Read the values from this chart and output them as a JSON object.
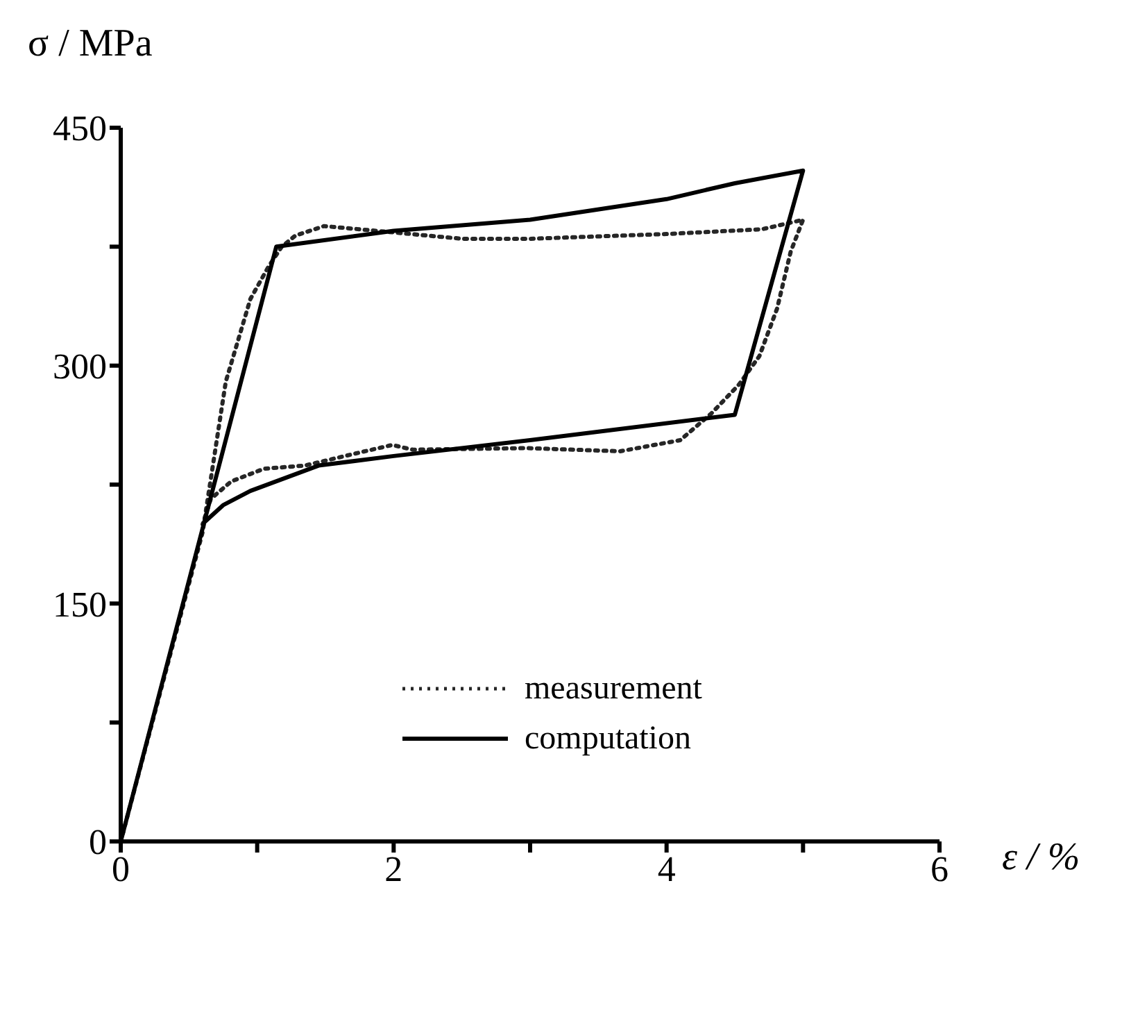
{
  "chart_data": {
    "type": "line",
    "xlabel": "ε / %",
    "ylabel": "σ / MPa",
    "xlim": [
      0,
      6
    ],
    "ylim": [
      0,
      450
    ],
    "xticks": [
      0,
      {
        "value": 1,
        "label": null
      },
      2,
      {
        "value": 3,
        "label": null
      },
      4,
      {
        "value": 5,
        "label": null
      },
      6
    ],
    "yticks": [
      0,
      {
        "value": 75,
        "label": null
      },
      150,
      {
        "value": 225,
        "label": null
      },
      300,
      {
        "value": 375,
        "label": null
      },
      450
    ],
    "legend": "bottom",
    "marker": "none",
    "series": [
      {
        "name": "measurement",
        "color": "#262626",
        "line_style": "dotted",
        "x": [
          0,
          0.6,
          0.77,
          0.95,
          1.08,
          1.18,
          1.28,
          1.49,
          2,
          2.5,
          3,
          4,
          4.7,
          5,
          4.91,
          4.81,
          4.68,
          4.53,
          4.33,
          4.1,
          3.66,
          3.32,
          2.98,
          2.14,
          1.99,
          1.69,
          1.35,
          1.05,
          0.81,
          0.66,
          0.6
        ],
        "values": [
          0,
          195,
          290,
          342,
          362,
          375,
          382,
          388,
          384,
          380,
          380,
          383,
          386,
          392,
          372,
          336,
          306,
          288,
          270,
          253,
          246,
          247,
          248,
          247,
          250,
          244,
          237,
          235,
          227,
          216,
          200
        ]
      },
      {
        "name": "computation",
        "color": "#000000",
        "line_style": "solid",
        "x": [
          0,
          1.14,
          2,
          3,
          4,
          4.5,
          5,
          4.5,
          3,
          2,
          1.45,
          0.95,
          0.75,
          0.61
        ],
        "values": [
          0,
          375,
          385,
          392,
          405,
          415,
          423,
          269,
          253,
          243,
          237,
          221,
          212,
          201
        ]
      }
    ]
  }
}
